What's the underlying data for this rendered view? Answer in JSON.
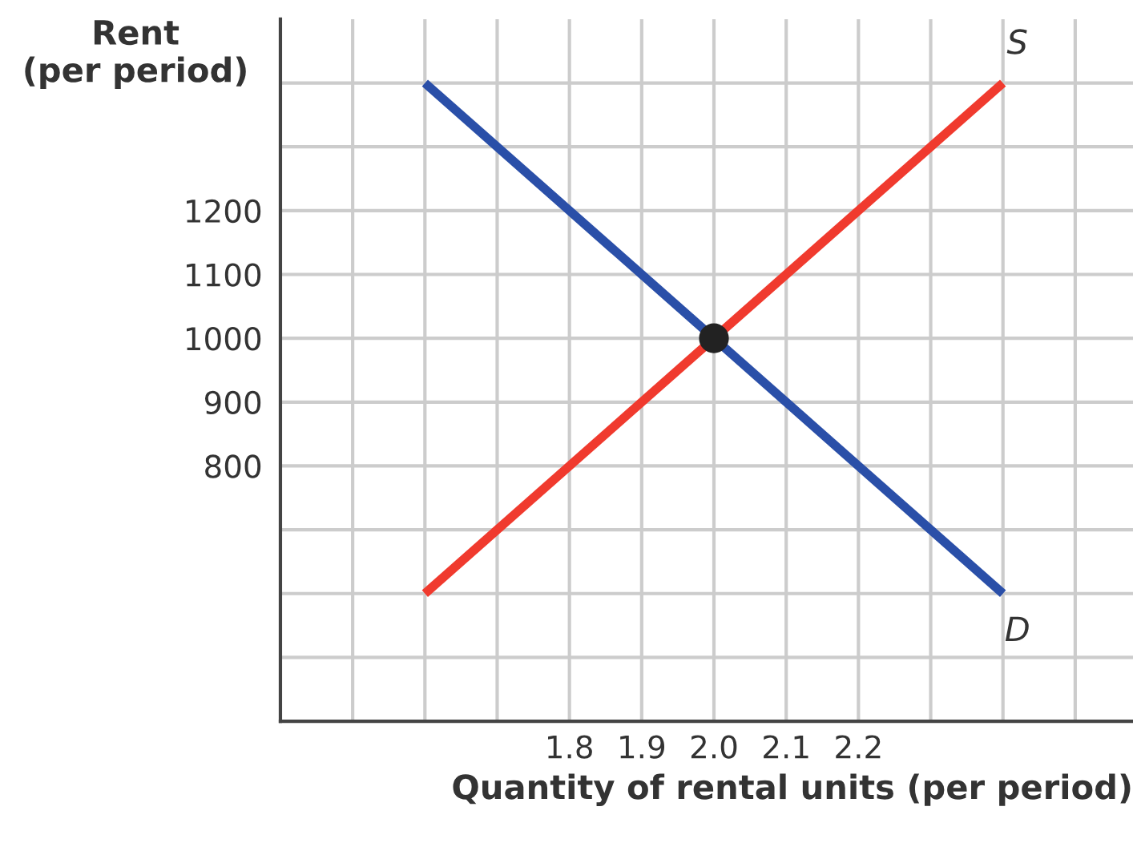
{
  "chart_data": {
    "type": "line",
    "xlabel": "Quantity of rental units (per period)",
    "ylabel": "Rent\n(per period)",
    "series": [
      {
        "name": "D",
        "color": "#2a4fa8",
        "x": [
          1.6,
          2.4
        ],
        "values": [
          1400,
          600
        ]
      },
      {
        "name": "S",
        "color": "#f03a2e",
        "x": [
          1.6,
          2.4
        ],
        "values": [
          600,
          1400
        ]
      },
      {
        "type": "scatter",
        "color": "#222222",
        "x": [
          2.0
        ],
        "values": [
          1000
        ],
        "marker": "circle"
      }
    ],
    "xlim": [
      1.4,
      2.58
    ],
    "ylim": [
      400,
      1500
    ],
    "xticks": [
      {
        "value": 1.5,
        "label": null
      },
      {
        "value": 1.6,
        "label": null
      },
      {
        "value": 1.7,
        "label": null
      },
      {
        "value": 1.8,
        "label": "1.8"
      },
      {
        "value": 1.9,
        "label": "1.9"
      },
      {
        "value": 2.0,
        "label": "2.0"
      },
      {
        "value": 2.1,
        "label": "2.1"
      },
      {
        "value": 2.2,
        "label": "2.2"
      },
      {
        "value": 2.3,
        "label": null
      },
      {
        "value": 2.4,
        "label": null
      },
      {
        "value": 2.5,
        "label": null
      }
    ],
    "yticks": [
      {
        "value": 500,
        "label": null
      },
      {
        "value": 600,
        "label": null
      },
      {
        "value": 700,
        "label": null
      },
      800,
      900,
      1000,
      1100,
      1200,
      {
        "value": 1300,
        "label": null
      },
      {
        "value": 1400,
        "label": null
      }
    ],
    "grid": true
  }
}
